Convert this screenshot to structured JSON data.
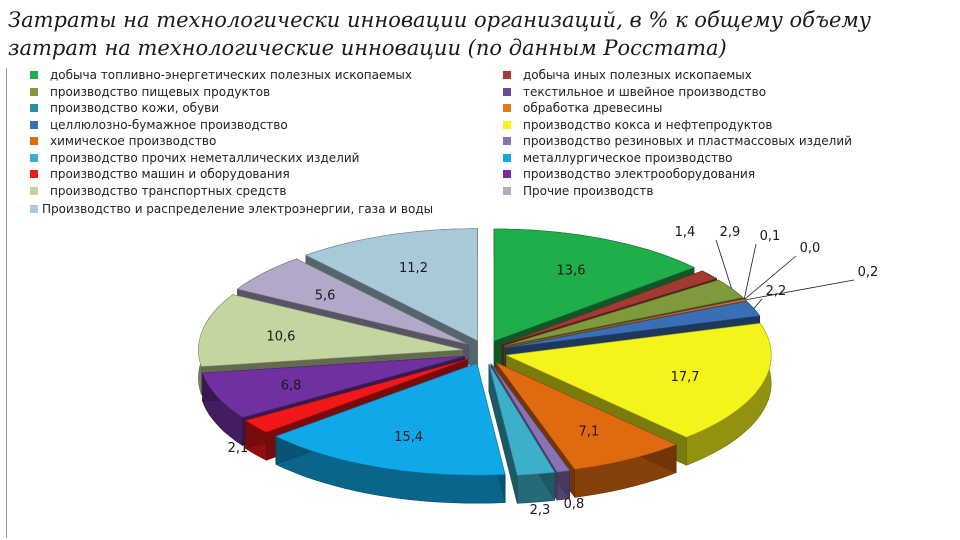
{
  "title_line1": "Затраты на технологически инновации организаций, в % к общему объему",
  "title_line2": "затрат на технологические инновации (по данным Росстата)",
  "chart_data": {
    "type": "pie",
    "title": "Затраты на технологически инновации организаций, в % к общему объему затрат на технологические инновации (по данным Росстата)",
    "legend_placement": "top",
    "slices": [
      {
        "label": "добыча топливно-энергетических полезных ископаемых",
        "value": 13.6,
        "value_label": "13,6",
        "color": "#1fae4a"
      },
      {
        "label": "добыча иных полезных ископаемых",
        "value": 1.4,
        "value_label": "1,4",
        "color": "#a03a32"
      },
      {
        "label": "производство пищевых продуктов",
        "value": 2.9,
        "value_label": "2,9",
        "color": "#7f9a3a"
      },
      {
        "label": "текстильное и швейное производство",
        "value": 0.1,
        "value_label": "0,1",
        "color": "#6a4f91"
      },
      {
        "label": "производство кожи, обуви",
        "value": 0.0,
        "value_label": "0,0",
        "color": "#2d8fa0"
      },
      {
        "label": "обработка древесины",
        "value": 0.2,
        "value_label": "0,2",
        "color": "#e07a20"
      },
      {
        "label": "целлюлозно-бумажное производство",
        "value": 2.2,
        "value_label": "2,2",
        "color": "#3a6fb5"
      },
      {
        "label": "производство кокса и нефтепродуктов",
        "value": 17.7,
        "value_label": "17,7",
        "color": "#f4f41a"
      },
      {
        "label": "химическое производство",
        "value": 7.1,
        "value_label": "7,1",
        "color": "#e06a10"
      },
      {
        "label": "производство резиновых и пластмассовых изделий",
        "value": 0.8,
        "value_label": "0,8",
        "color": "#8a72b8"
      },
      {
        "label": "производство прочих неметаллических изделий",
        "value": 2.3,
        "value_label": "2,3",
        "color": "#3cb0c8"
      },
      {
        "label": "металлургическое производство",
        "value": 15.4,
        "value_label": "15,4",
        "color": "#10a8e8"
      },
      {
        "label": "производство машин и оборудования",
        "value": 2.1,
        "value_label": "2,1",
        "color": "#f01818"
      },
      {
        "label": "производство электрооборудования",
        "value": 6.8,
        "value_label": "6,8",
        "color": "#7030a0"
      },
      {
        "label": "производство транспортных средств",
        "value": 10.6,
        "value_label": "10,6",
        "color": "#c4d6a0"
      },
      {
        "label": "Прочие производств",
        "value": 5.6,
        "value_label": "5,6",
        "color": "#b2a8c8"
      },
      {
        "label": "Производство и распределение электроэнергии, газа и воды",
        "value": 11.2,
        "value_label": "11,2",
        "color": "#a8cad8"
      }
    ]
  }
}
